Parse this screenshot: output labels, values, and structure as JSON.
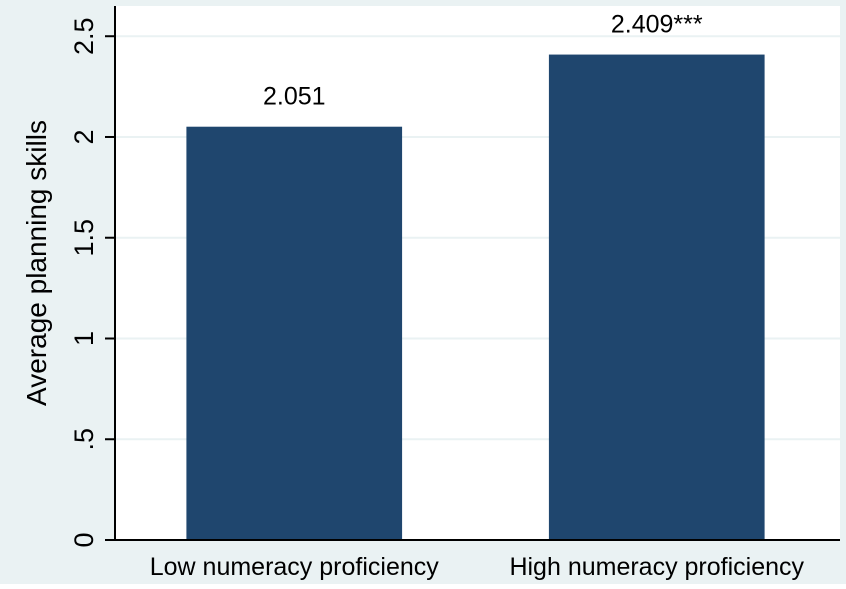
{
  "chart_data": {
    "type": "bar",
    "categories": [
      "Low numeracy proficiency",
      "High numeracy proficiency"
    ],
    "values": [
      2.051,
      2.409
    ],
    "data_labels": [
      "2.051",
      "2.409***"
    ],
    "title": "",
    "xlabel": "",
    "ylabel": "Average planning skills",
    "ylim": [
      0,
      2.65
    ],
    "yticks": [
      0,
      0.5,
      1,
      1.5,
      2,
      2.5
    ],
    "ytick_labels": [
      "0",
      ".5",
      "1",
      "1.5",
      "2",
      "2.5"
    ],
    "grid": true,
    "legend": "none",
    "colors": {
      "bar": "#1f466e",
      "plot_background": "#ffffff",
      "outer_background": "#eaf2f3",
      "grid": "#eaf2f3",
      "axis": "#000000"
    }
  }
}
